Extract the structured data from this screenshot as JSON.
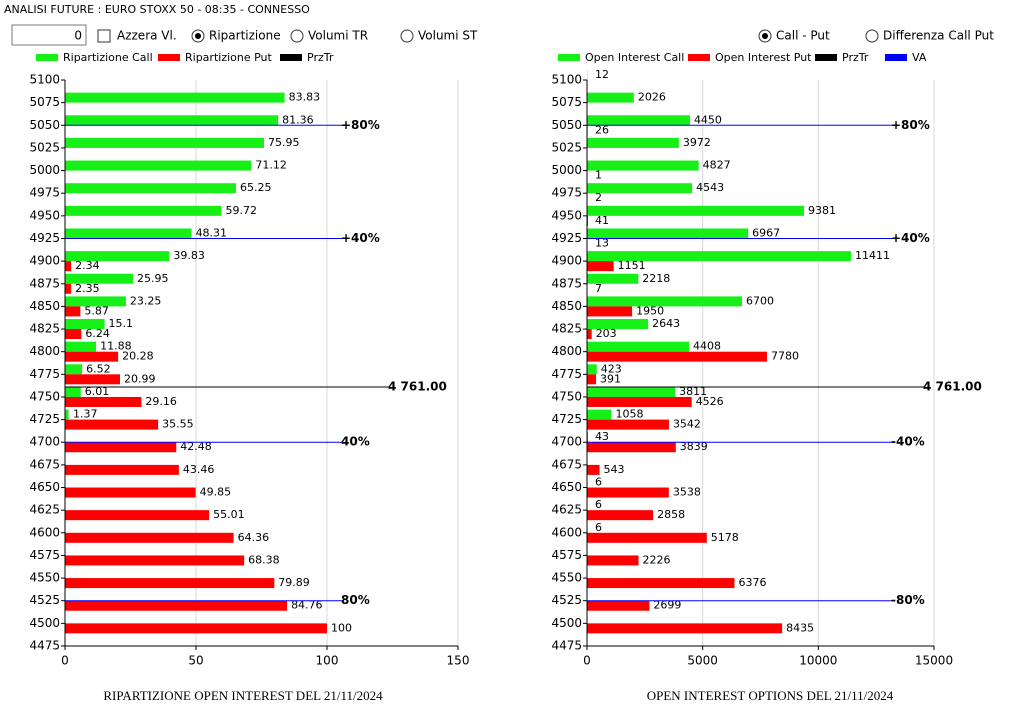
{
  "header": {
    "title": "ANALISI FUTURE : EURO STOXX 50 - 08:35 - CONNESSO"
  },
  "controls": {
    "input_value": "0",
    "checkbox": {
      "label": "Azzera Vl.",
      "checked": false
    },
    "radios_left": [
      {
        "label": "Ripartizione",
        "checked": true
      },
      {
        "label": "Volumi TR",
        "checked": false
      },
      {
        "label": "Volumi ST",
        "checked": false
      }
    ],
    "radios_right": [
      {
        "label": "Call - Put",
        "checked": true
      },
      {
        "label": "Differenza Call Put",
        "checked": false
      }
    ]
  },
  "chart_data": [
    {
      "type": "bar",
      "orientation": "horizontal",
      "title": "RIPARTIZIONE OPEN INTEREST DEL 21/11/2024",
      "y": [
        5100,
        5075,
        5050,
        5025,
        5000,
        4975,
        4950,
        4925,
        4900,
        4875,
        4850,
        4825,
        4800,
        4775,
        4750,
        4725,
        4700,
        4675,
        4650,
        4625,
        4600,
        4575,
        4550,
        4525,
        4500
      ],
      "series": [
        {
          "name": "Ripartizione Call",
          "color": "#16f016",
          "values": [
            null,
            83.83,
            81.36,
            75.95,
            71.12,
            65.25,
            59.72,
            48.31,
            39.83,
            25.95,
            23.25,
            15.1,
            11.88,
            6.52,
            6.01,
            1.37,
            null,
            null,
            null,
            null,
            null,
            null,
            null,
            null,
            null
          ]
        },
        {
          "name": "Ripartizione Put",
          "color": "#ff0000",
          "values": [
            null,
            null,
            null,
            null,
            null,
            null,
            null,
            null,
            2.34,
            2.35,
            5.87,
            6.24,
            20.28,
            20.99,
            29.16,
            35.55,
            42.48,
            43.46,
            49.85,
            55.01,
            64.36,
            68.38,
            79.89,
            84.76,
            100
          ]
        }
      ],
      "extra_legend": [
        {
          "name": "PrzTr",
          "color": "#000000"
        }
      ],
      "annotations": [
        {
          "y": 5050,
          "label": "+80%",
          "color": "#0000ff"
        },
        {
          "y": 4925,
          "label": "+40%",
          "color": "#0000ff"
        },
        {
          "y": 4761,
          "label": "4 761.00",
          "color": "#000000"
        },
        {
          "y": 4700,
          "label": "40%",
          "color": "#0000ff"
        },
        {
          "y": 4525,
          "label": "80%",
          "color": "#0000ff"
        }
      ],
      "xlim": [
        0,
        150
      ],
      "xticks": [
        0,
        50,
        100,
        150
      ],
      "ylim": [
        4475,
        5100
      ],
      "yticks": [
        5100,
        5075,
        5050,
        5025,
        5000,
        4975,
        4950,
        4925,
        4900,
        4875,
        4850,
        4825,
        4800,
        4775,
        4750,
        4725,
        4700,
        4675,
        4650,
        4625,
        4600,
        4575,
        4550,
        4525,
        4500,
        4475
      ],
      "grid": true
    },
    {
      "type": "bar",
      "orientation": "horizontal",
      "title": "OPEN INTEREST OPTIONS DEL 21/11/2024",
      "y": [
        5100,
        5075,
        5050,
        5025,
        5000,
        4975,
        4950,
        4925,
        4900,
        4875,
        4850,
        4825,
        4800,
        4775,
        4750,
        4725,
        4700,
        4675,
        4650,
        4625,
        4600,
        4575,
        4550,
        4525,
        4500
      ],
      "series": [
        {
          "name": "Open Interest Call",
          "color": "#16f016",
          "values": [
            12,
            2026,
            4450,
            3972,
            4827,
            4543,
            9381,
            6967,
            11411,
            2218,
            6700,
            2643,
            4408,
            423,
            3811,
            1058,
            43,
            null,
            6,
            6,
            6,
            null,
            null,
            null,
            null
          ]
        },
        {
          "name": "Open Interest Put",
          "color": "#ff0000",
          "values": [
            null,
            null,
            26,
            null,
            1,
            2,
            41,
            13,
            1151,
            7,
            1950,
            203,
            7780,
            391,
            4526,
            3542,
            3839,
            543,
            3538,
            2858,
            5178,
            2226,
            6376,
            2699,
            8435
          ]
        }
      ],
      "extra_legend": [
        {
          "name": "PrzTr",
          "color": "#000000"
        },
        {
          "name": "VA",
          "color": "#0000ff"
        }
      ],
      "annotations": [
        {
          "y": 5050,
          "label": "+80%",
          "color": "#0000ff"
        },
        {
          "y": 4925,
          "label": "+40%",
          "color": "#0000ff"
        },
        {
          "y": 4761,
          "label": "4 761.00",
          "color": "#000000"
        },
        {
          "y": 4700,
          "label": "-40%",
          "color": "#0000ff"
        },
        {
          "y": 4525,
          "label": "-80%",
          "color": "#0000ff"
        }
      ],
      "xlim": [
        0,
        15000
      ],
      "xticks": [
        0,
        5000,
        10000,
        15000
      ],
      "ylim": [
        4475,
        5100
      ],
      "yticks": [
        5100,
        5075,
        5050,
        5025,
        5000,
        4975,
        4950,
        4925,
        4900,
        4875,
        4850,
        4825,
        4800,
        4775,
        4750,
        4725,
        4700,
        4675,
        4650,
        4625,
        4600,
        4575,
        4550,
        4525,
        4500,
        4475
      ],
      "grid": true
    }
  ]
}
